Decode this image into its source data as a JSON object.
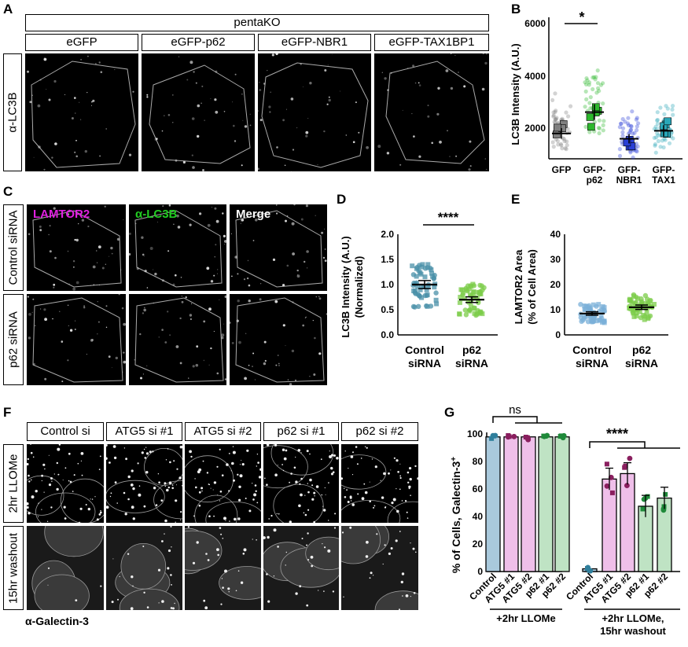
{
  "panels": {
    "A": "A",
    "B": "B",
    "C": "C",
    "D": "D",
    "E": "E",
    "F": "F",
    "G": "G"
  },
  "panelA": {
    "group_header": "pentaKO",
    "columns": [
      "eGFP",
      "eGFP-p62",
      "eGFP-NBR1",
      "eGFP-TAX1BP1"
    ],
    "row_label": "α-LC3B"
  },
  "panelB": {
    "ylabel": "LC3B Intensity (A.U.)",
    "yticks": [
      "2000",
      "4000",
      "6000"
    ],
    "xticks": [
      [
        "GFP"
      ],
      [
        "GFP-",
        "p62"
      ],
      [
        "GFP-",
        "NBR1"
      ],
      [
        "GFP-",
        "TAX1"
      ]
    ],
    "significance": "*"
  },
  "panelC": {
    "channels": [
      "LAMTOR2",
      "α-LC3B",
      "Merge"
    ],
    "rows": [
      "Control siRNA",
      "p62 siRNA"
    ],
    "colors": {
      "lamtor": "#e020e0",
      "lc3b": "#22cc22"
    }
  },
  "panelD": {
    "ylabel_line1": "LC3B Intensity (A.U.)",
    "ylabel_line2": "(Normalized)",
    "yticks": [
      "0.0",
      "0.5",
      "1.0",
      "1.5",
      "2.0"
    ],
    "xticks": [
      [
        "Control",
        "siRNA"
      ],
      [
        "p62",
        "siRNA"
      ]
    ],
    "significance": "****"
  },
  "panelE": {
    "ylabel_line1": "LAMTOR2 Area",
    "ylabel_line2": "(% of Cell Area)",
    "yticks": [
      "0",
      "10",
      "20",
      "30",
      "40"
    ],
    "xticks": [
      [
        "Control",
        "siRNA"
      ],
      [
        "p62",
        "siRNA"
      ]
    ]
  },
  "panelF": {
    "columns": [
      "Control si",
      "ATG5 si #1",
      "ATG5 si #2",
      "p62 si #1",
      "p62 si #2"
    ],
    "rows": [
      "2hr LLOMe",
      "15hr washout"
    ],
    "footer": "α-Galectin-3"
  },
  "panelG": {
    "ylabel": "% of Cells, Galectin-3",
    "ylabel_sup": "+",
    "yticks": [
      "0",
      "20",
      "40",
      "60",
      "80",
      "100"
    ],
    "xticks": [
      "Control",
      "ATG5 #1",
      "ATG5 #2",
      "p62 #1",
      "p62 #2",
      "Control",
      "ATG5 #1",
      "ATG5 #2",
      "p62 #1",
      "p62 #2"
    ],
    "group1": "+2hr LLOMe",
    "group2_line1": "+2hr LLOMe,",
    "group2_line2": "15hr washout",
    "sig_ns": "ns",
    "sig_stars": "****"
  },
  "chart_data": [
    {
      "type": "scatter",
      "panel": "B",
      "ylabel": "LC3B Intensity (A.U.)",
      "categories": [
        "GFP",
        "GFP-p62",
        "GFP-NBR1",
        "GFP-TAX1"
      ],
      "ylim": [
        700,
        6000
      ],
      "means": [
        1650,
        2450,
        1450,
        1750
      ],
      "series_colors": [
        "#808080",
        "#2db82d",
        "#2a3fd6",
        "#2aa7b8"
      ]
    },
    {
      "type": "scatter",
      "panel": "D",
      "ylabel": "LC3B Intensity (A.U.) (Normalized)",
      "categories": [
        "Control siRNA",
        "p62 siRNA"
      ],
      "ylim": [
        0,
        2
      ],
      "means": [
        1.0,
        0.7
      ],
      "series_colors": [
        "#4a90a8",
        "#7ccc4a"
      ]
    },
    {
      "type": "scatter",
      "panel": "E",
      "ylabel": "LAMTOR2 Area (% of Cell Area)",
      "categories": [
        "Control siRNA",
        "p62 siRNA"
      ],
      "ylim": [
        0,
        40
      ],
      "means": [
        8.5,
        11
      ],
      "series_colors": [
        "#7bb0d8",
        "#7ccc4a"
      ]
    },
    {
      "type": "bar",
      "panel": "G",
      "ylabel": "% of Cells, Galectin-3+",
      "categories": [
        "Control",
        "ATG5 #1",
        "ATG5 #2",
        "p62 #1",
        "p62 #2",
        "Control",
        "ATG5 #1",
        "ATG5 #2",
        "p62 #1",
        "p62 #2"
      ],
      "groups": [
        "+2hr LLOMe",
        "+2hr LLOMe, 15hr washout"
      ],
      "values": [
        99,
        99,
        99,
        99,
        99,
        2,
        68,
        72,
        48,
        54
      ],
      "ylim": [
        0,
        100
      ],
      "bar_colors": [
        "#a9c9dc",
        "#efbfe9",
        "#efbfe9",
        "#bfe3c4",
        "#bfe3c4",
        "#a9c9dc",
        "#efbfe9",
        "#efbfe9",
        "#bfe3c4",
        "#bfe3c4"
      ],
      "dot_colors": [
        "#2f7f9c",
        "#8a1f5f",
        "#8a1f5f",
        "#1f8a3a",
        "#1f8a3a",
        "#2f7f9c",
        "#8a1f5f",
        "#8a1f5f",
        "#1f8a3a",
        "#1f8a3a"
      ]
    }
  ]
}
